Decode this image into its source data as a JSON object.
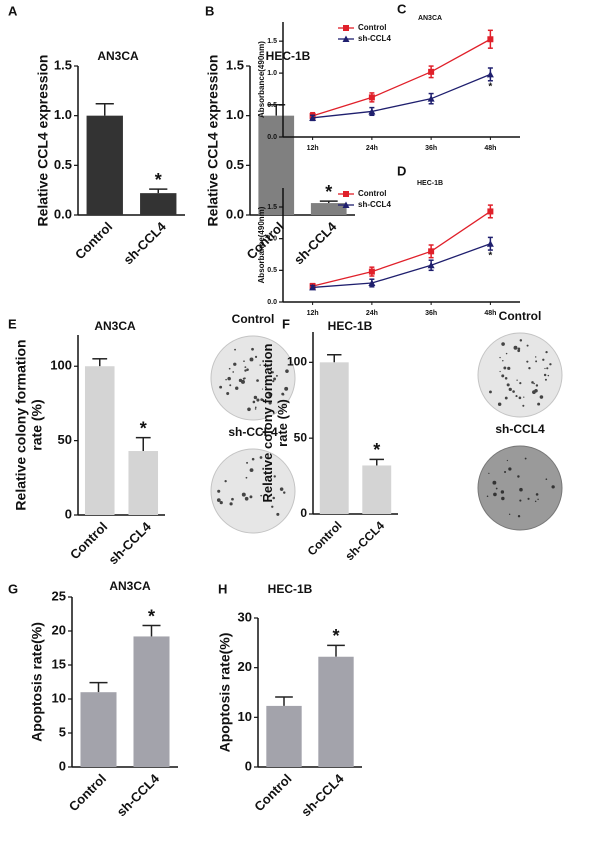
{
  "chart_data": [
    {
      "panel": "A",
      "type": "bar",
      "title": "AN3CA",
      "ylabel": [
        "Relative CCL4 expression"
      ],
      "categories": [
        "Control",
        "sh-CCL4"
      ],
      "values": [
        1.0,
        0.22
      ],
      "errors": [
        0.12,
        0.04
      ],
      "value_annotations": [
        null,
        "*"
      ],
      "color": "#333333",
      "ylim": [
        0,
        1.5
      ],
      "yticks": [
        {
          "value": 0,
          "label": "0.0"
        },
        0.5,
        {
          "value": 1,
          "label": "1.0"
        },
        1.5
      ]
    },
    {
      "panel": "B",
      "type": "bar",
      "title": "HEC-1B",
      "ylabel": [
        "Relative CCL4 expression"
      ],
      "categories": [
        "Control",
        "sh-CCL4"
      ],
      "values": [
        1.0,
        0.12
      ],
      "errors": [
        0.11,
        0.02
      ],
      "value_annotations": [
        null,
        "*"
      ],
      "color": "#808080",
      "ylim": [
        0,
        1.5
      ],
      "yticks": [
        {
          "value": 0,
          "label": "0.0"
        },
        0.5,
        {
          "value": 1,
          "label": "1.0"
        },
        1.5
      ]
    },
    {
      "panel": "C",
      "type": "line",
      "title": "AN3CA",
      "ylabel": [
        "Absorbance(490nm)"
      ],
      "categories": [
        "12h",
        "24h",
        "36h",
        "48h"
      ],
      "legend": "upper left",
      "ylim": [
        0,
        1.8
      ],
      "yticks": [
        {
          "value": 0,
          "label": "0.0"
        },
        0.5,
        {
          "value": 1,
          "label": "1.0"
        },
        1.5
      ],
      "series": [
        {
          "name": "Control",
          "color": "#e0202a",
          "marker": "square",
          "values": [
            0.33,
            0.62,
            1.02,
            1.53
          ],
          "errors": [
            0.05,
            0.07,
            0.09,
            0.14
          ],
          "value_annotations": [
            null,
            null,
            null,
            null
          ]
        },
        {
          "name": "sh-CCL4",
          "color": "#1f1f6e",
          "marker": "triangle",
          "values": [
            0.3,
            0.4,
            0.6,
            0.98
          ],
          "errors": [
            0.04,
            0.06,
            0.08,
            0.1
          ],
          "value_annotations": [
            null,
            null,
            null,
            "*"
          ]
        }
      ]
    },
    {
      "panel": "D",
      "type": "line",
      "title": "HEC-1B",
      "ylabel": [
        "Absorbance(490nm)"
      ],
      "categories": [
        "12h",
        "24h",
        "36h",
        "48h"
      ],
      "legend": "upper left",
      "ylim": [
        0,
        1.8
      ],
      "yticks": [
        {
          "value": 0,
          "label": "0.0"
        },
        0.5,
        {
          "value": 1,
          "label": "1.0"
        },
        1.5
      ],
      "series": [
        {
          "name": "Control",
          "color": "#e0202a",
          "marker": "square",
          "values": [
            0.25,
            0.48,
            0.8,
            1.43
          ],
          "errors": [
            0.04,
            0.07,
            0.1,
            0.1
          ],
          "value_annotations": [
            null,
            null,
            null,
            null
          ]
        },
        {
          "name": "sh-CCL4",
          "color": "#1f1f6e",
          "marker": "triangle",
          "values": [
            0.23,
            0.3,
            0.58,
            0.92
          ],
          "errors": [
            0.03,
            0.06,
            0.08,
            0.1
          ],
          "value_annotations": [
            null,
            null,
            null,
            "*"
          ]
        }
      ]
    },
    {
      "panel": "E",
      "type": "bar",
      "title": "AN3CA",
      "ylabel": [
        "Relative colony formation",
        "rate (%)"
      ],
      "categories": [
        "Control",
        "sh-CCL4"
      ],
      "values": [
        100,
        43
      ],
      "errors": [
        5,
        9
      ],
      "value_annotations": [
        null,
        "*"
      ],
      "color": "#d4d4d4",
      "ylim": [
        0,
        121
      ],
      "yticks": [
        0,
        50,
        100
      ],
      "plate_labels": [
        "Control",
        "sh-CCL4"
      ]
    },
    {
      "panel": "F",
      "type": "bar",
      "title": "HEC-1B",
      "ylabel": [
        "Relative colony formation",
        "rate (%)"
      ],
      "categories": [
        "Control",
        "sh-CCL4"
      ],
      "values": [
        100,
        32
      ],
      "errors": [
        5,
        4
      ],
      "value_annotations": [
        null,
        "*"
      ],
      "color": "#d4d4d4",
      "ylim": [
        0,
        120
      ],
      "yticks": [
        0,
        50,
        100
      ],
      "plate_labels": [
        "Control",
        "sh-CCL4"
      ]
    },
    {
      "panel": "G",
      "type": "bar",
      "title": "AN3CA",
      "ylabel": [
        "Apoptosis rate(%)"
      ],
      "categories": [
        "Control",
        "sh-CCL4"
      ],
      "values": [
        11,
        19.2
      ],
      "errors": [
        1.4,
        1.6
      ],
      "value_annotations": [
        null,
        "*"
      ],
      "color": "#a3a3ab",
      "ylim": [
        0,
        25
      ],
      "yticks": [
        0,
        5,
        10,
        15,
        20,
        25
      ]
    },
    {
      "panel": "H",
      "type": "bar",
      "title": "HEC-1B",
      "ylabel": [
        "Apoptosis rate(%)"
      ],
      "categories": [
        "Control",
        "sh-CCL4"
      ],
      "values": [
        12.3,
        22.2
      ],
      "errors": [
        1.8,
        2.3
      ],
      "value_annotations": [
        null,
        "*"
      ],
      "color": "#a3a3ab",
      "ylim": [
        0,
        30
      ],
      "yticks": [
        0,
        10,
        20,
        30
      ]
    }
  ]
}
